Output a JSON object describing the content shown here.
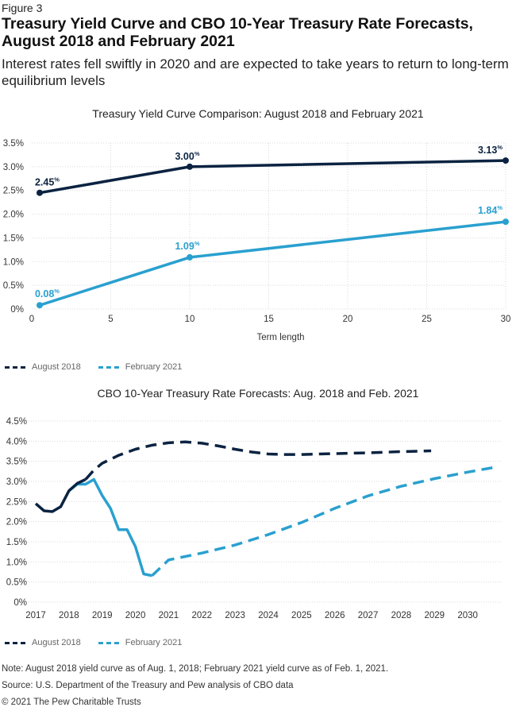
{
  "figure_label": "Figure 3",
  "title": "Treasury Yield Curve and CBO 10-Year Treasury Rate Forecasts, August 2018 and February 2021",
  "subtitle": "Interest rates fell swiftly in 2020 and are expected to take years to return to long-term equilibrium levels",
  "colors": {
    "august_2018": "#0b2341",
    "february_2021": "#2aa0cf"
  },
  "chart_data": [
    {
      "type": "line",
      "title": "Treasury Yield Curve Comparison: August 2018 and February 2021",
      "xlabel": "Term length",
      "ylabel": "",
      "xlim": [
        0,
        30
      ],
      "ylim": [
        0,
        3.5
      ],
      "xticks": [
        "0",
        "5",
        "10",
        "15",
        "20",
        "25",
        "30"
      ],
      "yticks": [
        "0%",
        "0.5%",
        "1.0%",
        "1.5%",
        "2.0%",
        "2.5%",
        "3.0%",
        "3.5%"
      ],
      "legend": "bottom-left",
      "series": [
        {
          "name": "August 2018",
          "x": [
            0.5,
            10,
            30
          ],
          "y": [
            2.45,
            3.0,
            3.13
          ],
          "labels": [
            "2.45",
            "3.00",
            "3.13"
          ]
        },
        {
          "name": "February 2021",
          "x": [
            0.5,
            10,
            30
          ],
          "y": [
            0.08,
            1.09,
            1.84
          ],
          "labels": [
            "0.08",
            "1.09",
            "1.84"
          ]
        }
      ],
      "label_unit": "%"
    },
    {
      "type": "line",
      "title": "CBO 10-Year Treasury Rate Forecasts: Aug. 2018 and Feb. 2021",
      "xlabel": "",
      "ylabel": "",
      "xlim": [
        2017,
        2031
      ],
      "ylim": [
        0,
        4.5
      ],
      "xticks": [
        "2017",
        "2018",
        "2019",
        "2020",
        "2021",
        "2022",
        "2023",
        "2024",
        "2025",
        "2026",
        "2027",
        "2028",
        "2029",
        "2030"
      ],
      "yticks": [
        "0%",
        "0.5%",
        "1.0%",
        "1.5%",
        "2.0%",
        "2.5%",
        "3.0%",
        "3.5%",
        "4.0%",
        "4.5%"
      ],
      "legend": "bottom-left",
      "series": [
        {
          "name": "August 2018",
          "actual": {
            "x": [
              2017.0,
              2017.25,
              2017.5,
              2017.75,
              2018.0,
              2018.25,
              2018.5
            ],
            "y": [
              2.45,
              2.27,
              2.25,
              2.37,
              2.77,
              2.95,
              3.05
            ]
          },
          "forecast": {
            "x": [
              2018.5,
              2018.75,
              2019.0,
              2019.5,
              2020.0,
              2020.5,
              2021.0,
              2021.5,
              2022.0,
              2022.5,
              2023.0,
              2023.5,
              2024.0,
              2024.5,
              2025.0,
              2026.0,
              2027.0,
              2028.0,
              2028.9
            ],
            "y": [
              3.05,
              3.28,
              3.45,
              3.65,
              3.8,
              3.9,
              3.96,
              3.98,
              3.95,
              3.88,
              3.8,
              3.73,
              3.68,
              3.67,
              3.67,
              3.69,
              3.71,
              3.74,
              3.76
            ]
          }
        },
        {
          "name": "February 2021",
          "actual": {
            "x": [
              2018.0,
              2018.25,
              2018.5,
              2018.75,
              2019.0,
              2019.25,
              2019.5,
              2019.75,
              2020.0,
              2020.25,
              2020.5
            ],
            "y": [
              2.77,
              2.93,
              2.93,
              3.05,
              2.65,
              2.33,
              1.8,
              1.8,
              1.38,
              0.7,
              0.66
            ]
          },
          "forecast": {
            "x": [
              2020.5,
              2021.0,
              2022.0,
              2023.0,
              2024.0,
              2025.0,
              2026.0,
              2027.0,
              2028.0,
              2029.0,
              2030.0,
              2030.8
            ],
            "y": [
              0.66,
              1.05,
              1.22,
              1.42,
              1.68,
              1.98,
              2.33,
              2.64,
              2.88,
              3.07,
              3.23,
              3.35
            ]
          }
        }
      ]
    }
  ],
  "footnotes": {
    "note": "Note: August 2018 yield curve as of Aug. 1, 2018; February 2021 yield curve as of Feb. 1, 2021.",
    "source": "Source: U.S. Department of the Treasury and Pew analysis of CBO data",
    "copyright": "© 2021 The Pew Charitable Trusts"
  }
}
